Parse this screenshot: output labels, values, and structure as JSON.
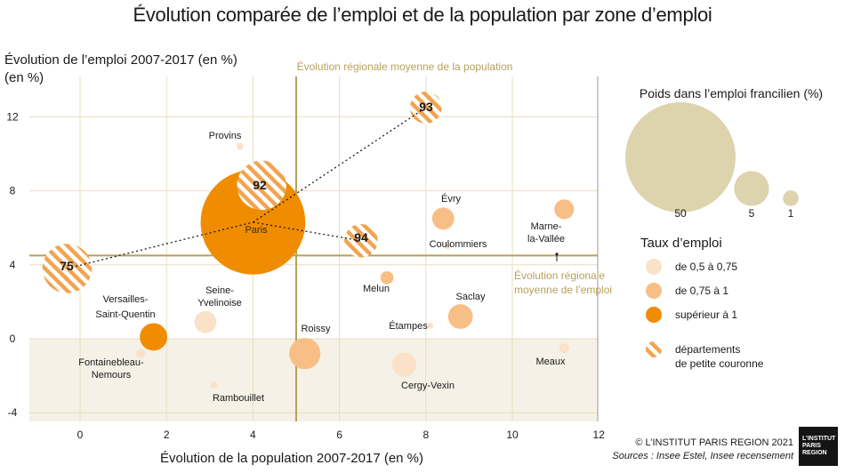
{
  "chart_data": {
    "type": "scatter",
    "title": "Évolution comparée de l’emploi et de la population par zone d’emploi",
    "xlabel": "Évolution de la population 2007-2017 (en %)",
    "ylabel": "Évolution de l’emploi 2007-2017 (en %)",
    "xlim": [
      -1.2,
      12
    ],
    "ylim": [
      -4.1,
      13.8
    ],
    "xticks": [
      0,
      2,
      4,
      6,
      8,
      10,
      12
    ],
    "yticks": [
      -4,
      0,
      4,
      8,
      12
    ],
    "grid": true,
    "reference_lines": {
      "population_avg_x": 5,
      "population_avg_label": "Évolution régionale moyenne de la population",
      "employment_avg_y": 4.5,
      "employment_avg_label_lines": [
        "Évolution régionale",
        "moyenne de l’emploi"
      ]
    },
    "negative_band_from": 0,
    "points": [
      {
        "name": "Paris",
        "x": 4.0,
        "y": 6.3,
        "weight": 45,
        "rate": "high"
      },
      {
        "name": "75",
        "x": -0.3,
        "y": 3.8,
        "weight": 10,
        "rate": "dept"
      },
      {
        "name": "92",
        "x": 4.2,
        "y": 8.3,
        "weight": 10,
        "rate": "dept"
      },
      {
        "name": "93",
        "x": 8.0,
        "y": 12.5,
        "weight": 4.2,
        "rate": "dept"
      },
      {
        "name": "94",
        "x": 6.5,
        "y": 5.3,
        "weight": 4.6,
        "rate": "dept"
      },
      {
        "name": "Provins",
        "x": 3.7,
        "y": 10.4,
        "weight": 0.2,
        "rate": "low"
      },
      {
        "name": "Évry",
        "x": 8.4,
        "y": 6.5,
        "weight": 2.0,
        "rate": "mid"
      },
      {
        "name": "Coulommiers",
        "x": 8.5,
        "y": 5.0,
        "weight": 0.15,
        "rate": "low"
      },
      {
        "name": "Marne-la-Vallée",
        "x": 11.2,
        "y": 7.0,
        "weight": 1.6,
        "rate": "mid"
      },
      {
        "name": "Melun",
        "x": 7.1,
        "y": 3.3,
        "weight": 0.7,
        "rate": "mid"
      },
      {
        "name": "Saclay",
        "x": 8.8,
        "y": 1.2,
        "weight": 2.5,
        "rate": "mid"
      },
      {
        "name": "Étampes",
        "x": 8.1,
        "y": 0.7,
        "weight": 0.15,
        "rate": "low"
      },
      {
        "name": "Meaux",
        "x": 11.2,
        "y": -0.5,
        "weight": 0.4,
        "rate": "low"
      },
      {
        "name": "Versailles-Saint-Quentin",
        "x": 1.7,
        "y": 0.1,
        "weight": 3.1,
        "rate": "high"
      },
      {
        "name": "Fontainebleau-Nemours",
        "x": 1.4,
        "y": -0.8,
        "weight": 0.35,
        "rate": "low"
      },
      {
        "name": "Seine-Yvelinoise",
        "x": 2.9,
        "y": 0.9,
        "weight": 2.0,
        "rate": "low"
      },
      {
        "name": "Rambouillet",
        "x": 3.1,
        "y": -2.5,
        "weight": 0.2,
        "rate": "low"
      },
      {
        "name": "Roissy",
        "x": 5.2,
        "y": -0.8,
        "weight": 4.0,
        "rate": "mid"
      },
      {
        "name": "Cergy-Vexin",
        "x": 7.5,
        "y": -1.4,
        "weight": 2.4,
        "rate": "low"
      }
    ],
    "connectors": [
      [
        "75",
        "Paris"
      ],
      [
        "Paris",
        "93"
      ],
      [
        "Paris",
        "94"
      ]
    ],
    "legend": {
      "size_title": "Poids dans l’emploi francilien (%)",
      "size_values": [
        50,
        5,
        1
      ],
      "size_labels": [
        "50",
        "5",
        "1"
      ],
      "rate_title": "Taux d’emploi",
      "rate_items": [
        {
          "key": "low",
          "label": "de 0,5 à 0,75"
        },
        {
          "key": "mid",
          "label": "de 0,75 à 1"
        },
        {
          "key": "high",
          "label": "supérieur à 1"
        },
        {
          "key": "dept",
          "label_lines": [
            "départements",
            "de petite couronne"
          ]
        }
      ]
    },
    "colors": {
      "low": "#fbe1c8",
      "mid": "#f7bf86",
      "high": "#f08c00",
      "dept_stripe": "#f2a450",
      "size_legend": "#ddd3ad",
      "reference": "#b8a05c",
      "band": "#f5f1e6",
      "grid": "#e8dfbf"
    }
  },
  "footer": {
    "copyright": "© L’INSTITUT PARIS REGION 2021",
    "sources": "Sources : Insee Estel, Insee recensement",
    "logo_lines": [
      "L’INSTITUT",
      "PARIS",
      "REGION"
    ]
  }
}
